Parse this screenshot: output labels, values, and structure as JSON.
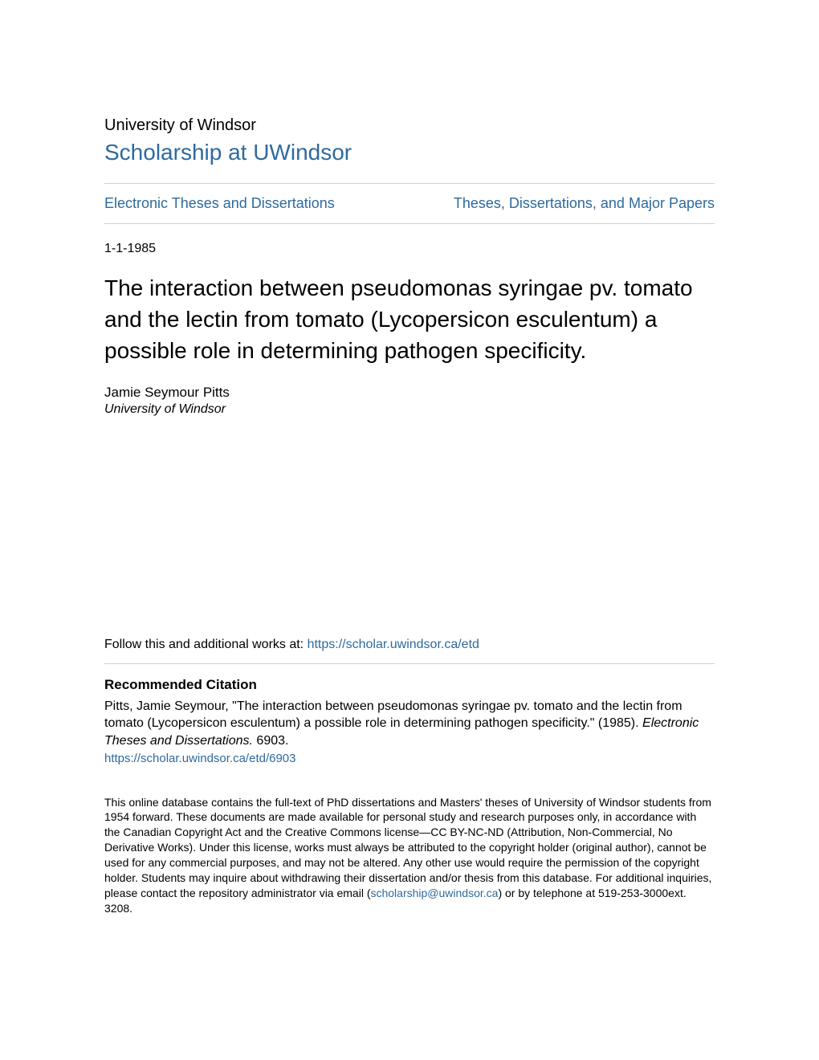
{
  "header": {
    "institution": "University of Windsor",
    "site_title": "Scholarship at UWindsor",
    "site_title_color": "#2e6a9e"
  },
  "nav": {
    "left": "Electronic Theses and Dissertations",
    "right": "Theses, Dissertations, and Major Papers",
    "link_color": "#2e6a9e"
  },
  "meta": {
    "date": "1-1-1985"
  },
  "paper": {
    "title": "The interaction between pseudomonas syringae pv. tomato and the lectin from tomato (Lycopersicon esculentum) a possible role in determining pathogen specificity.",
    "author": "Jamie Seymour Pitts",
    "affiliation": "University of Windsor"
  },
  "follow": {
    "prefix": "Follow this and additional works at: ",
    "url": "https://scholar.uwindsor.ca/etd"
  },
  "citation": {
    "heading": "Recommended Citation",
    "text_part1": "Pitts, Jamie Seymour, \"The interaction between pseudomonas syringae pv. tomato and the lectin from tomato (Lycopersicon esculentum) a possible role in determining pathogen specificity.\" (1985). ",
    "series_italic": "Electronic Theses and Dissertations.",
    "text_part2": " 6903.",
    "url": "https://scholar.uwindsor.ca/etd/6903"
  },
  "disclaimer": {
    "text_part1": "This online database contains the full-text of PhD dissertations and Masters' theses of University of Windsor students from 1954 forward. These documents are made available for personal study and research purposes only, in accordance with the Canadian Copyright Act and the Creative Commons license—CC BY-NC-ND (Attribution, Non-Commercial, No Derivative Works). Under this license, works must always be attributed to the copyright holder (original author), cannot be used for any commercial purposes, and may not be altered. Any other use would require the permission of the copyright holder. Students may inquire about withdrawing their dissertation and/or thesis from this database. For additional inquiries, please contact the repository administrator via email (",
    "email": "scholarship@uwindsor.ca",
    "text_part2": ") or by telephone at 519-253-3000ext. 3208."
  },
  "colors": {
    "text": "#000000",
    "link": "#2e6a9e",
    "rule": "#d0d0d0",
    "background": "#ffffff"
  },
  "typography": {
    "institution_fontsize": 20,
    "site_title_fontsize": 28,
    "nav_fontsize": 18,
    "date_fontsize": 16,
    "title_fontsize": 28,
    "author_fontsize": 17,
    "body_fontsize": 16,
    "disclaimer_fontsize": 14
  }
}
